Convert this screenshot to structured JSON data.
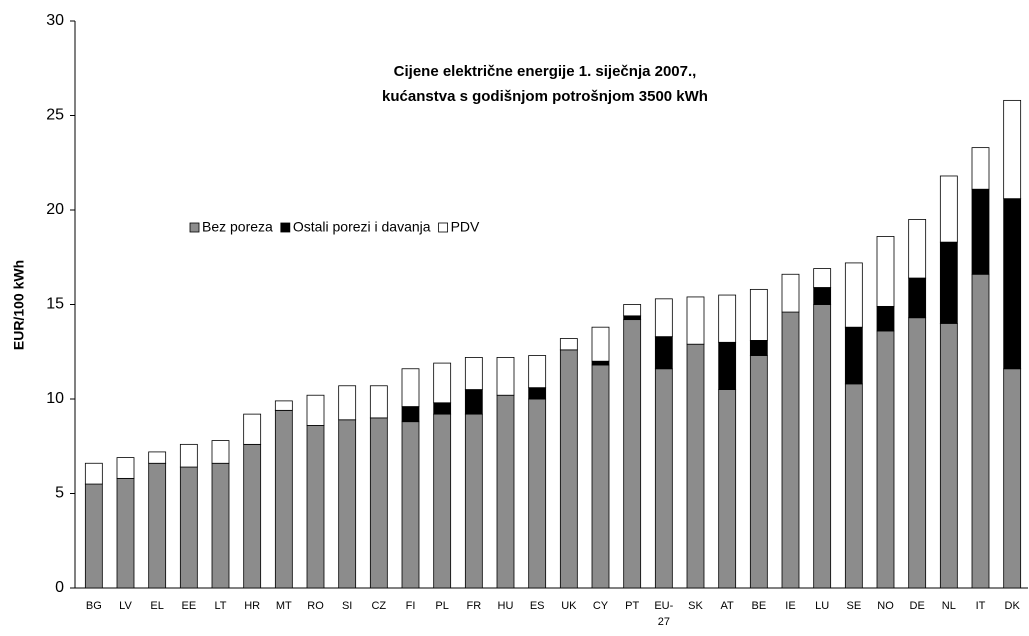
{
  "chart_data": {
    "type": "stacked_bar",
    "title": "Cijene električne energije 1. siječnja 2007.,",
    "subtitle": "kućanstva s godišnjom potrošnjom 3500 kWh",
    "y_label": "EUR/100 kWh",
    "categories": [
      "BG",
      "LV",
      "EL",
      "EE",
      "LT",
      "HR",
      "MT",
      "RO",
      "SI",
      "CZ",
      "FI",
      "PL",
      "FR",
      "HU",
      "ES",
      "UK",
      "CY",
      "PT",
      "EU-27",
      "SK",
      "AT",
      "BE",
      "IE",
      "LU",
      "SE",
      "NO",
      "DE",
      "NL",
      "IT",
      "DK"
    ],
    "series": [
      {
        "name": "Bez poreza",
        "color": "#8c8c8c",
        "values": [
          5.5,
          5.8,
          6.6,
          6.4,
          6.6,
          7.6,
          9.4,
          8.6,
          8.9,
          9.0,
          8.8,
          9.2,
          9.2,
          10.2,
          10.0,
          12.6,
          11.8,
          14.2,
          11.6,
          12.9,
          10.5,
          12.3,
          14.6,
          15.0,
          10.8,
          13.6,
          14.3,
          14.0,
          16.6,
          11.6
        ]
      },
      {
        "name": "Ostali porezi i davanja",
        "color": "#000000",
        "values": [
          0,
          0,
          0,
          0,
          0,
          0,
          0,
          0,
          0,
          0,
          0.8,
          0.6,
          1.3,
          0,
          0.6,
          0,
          0.2,
          0.2,
          1.7,
          0,
          2.5,
          0.8,
          0,
          0.9,
          3.0,
          1.3,
          2.1,
          4.3,
          4.5,
          9.0
        ]
      },
      {
        "name": "PDV",
        "color": "#ffffff",
        "values": [
          1.1,
          1.1,
          0.6,
          1.2,
          1.2,
          1.6,
          0.5,
          1.6,
          1.8,
          1.7,
          2.0,
          2.1,
          1.7,
          2.0,
          1.7,
          0.6,
          1.8,
          0.6,
          2.0,
          2.5,
          2.5,
          2.7,
          2.0,
          1.0,
          3.4,
          3.7,
          3.1,
          3.5,
          2.2,
          5.2
        ]
      }
    ],
    "ylim": [
      0,
      30
    ],
    "yticks": [
      0,
      5,
      10,
      15,
      20,
      25,
      30
    ]
  }
}
